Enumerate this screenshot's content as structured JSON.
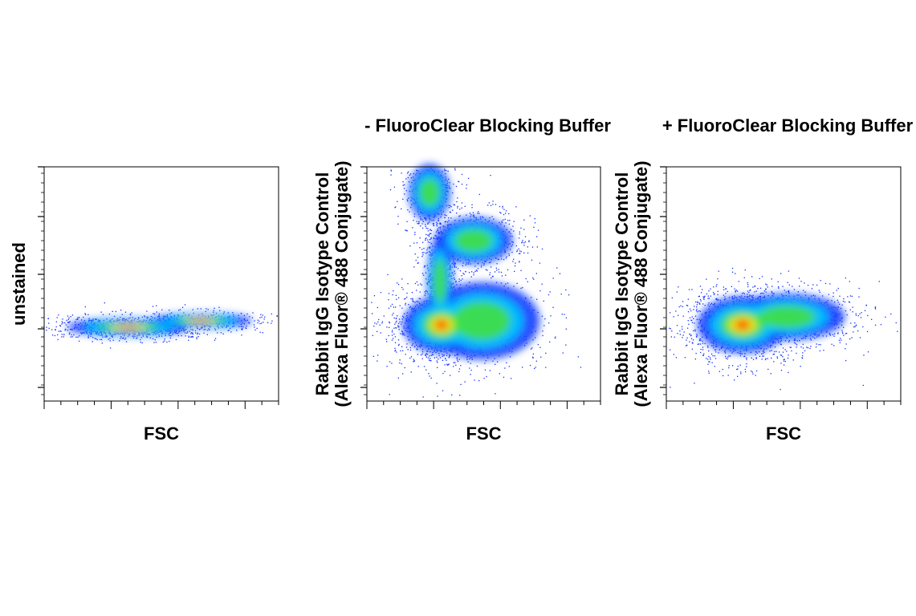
{
  "panels": [
    {
      "y_label": [
        "unstained"
      ],
      "x_label": "FSC"
    },
    {
      "title": "- FluoroClear Blocking Buffer",
      "y_label": [
        "Rabbit IgG Isotype Control",
        "(Alexa Fluor® 488 Conjugate)"
      ],
      "x_label": "FSC"
    },
    {
      "title": "+ FluoroClear Blocking Buffer",
      "y_label": [
        "Rabbit IgG Isotype Control",
        "(Alexa Fluor® 488 Conjugate)"
      ],
      "x_label": "FSC"
    }
  ]
}
